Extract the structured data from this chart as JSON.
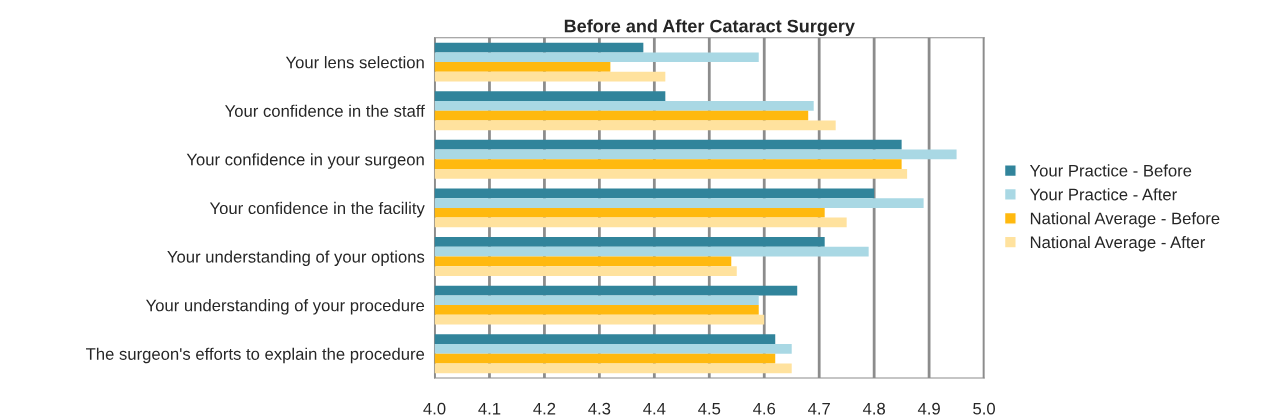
{
  "chart_data": {
    "type": "bar",
    "orientation": "horizontal",
    "title": "Before and After Cataract Surgery",
    "categories": [
      "Your lens selection",
      "Your confidence in the staff",
      "Your confidence in your surgeon",
      "Your confidence in the facility",
      "Your understanding of your options",
      "Your understanding of your procedure",
      "The surgeon's efforts to explain the procedure"
    ],
    "series": [
      {
        "name": "Your Practice - Before",
        "color": "#31849b",
        "values": [
          4.38,
          4.42,
          4.85,
          4.8,
          4.71,
          4.66,
          4.62
        ]
      },
      {
        "name": "Your Practice - After",
        "color": "#a9d8e4",
        "values": [
          4.59,
          4.69,
          4.95,
          4.89,
          4.79,
          4.59,
          4.65
        ]
      },
      {
        "name": "National Average - Before",
        "color": "#ffb90f",
        "values": [
          4.32,
          4.68,
          4.85,
          4.71,
          4.54,
          4.59,
          4.62
        ]
      },
      {
        "name": "National Average - After",
        "color": "#ffe29e",
        "values": [
          4.42,
          4.73,
          4.86,
          4.75,
          4.55,
          4.6,
          4.65
        ]
      }
    ],
    "xlim": [
      4.0,
      5.0
    ],
    "xticks": [
      {
        "value": 4.0,
        "label": "4.0"
      },
      {
        "value": 4.1,
        "label": "4.1"
      },
      {
        "value": 4.2,
        "label": "4.2"
      },
      {
        "value": 4.3,
        "label": "4.3"
      },
      {
        "value": 4.4,
        "label": "4.4"
      },
      {
        "value": 4.5,
        "label": "4.5"
      },
      {
        "value": 4.6,
        "label": "4.6"
      },
      {
        "value": 4.7,
        "label": "4.7"
      },
      {
        "value": 4.8,
        "label": "4.8"
      },
      {
        "value": 4.9,
        "label": "4.9"
      },
      {
        "value": 5.0,
        "label": "5.0"
      }
    ],
    "grid": "x",
    "legend": "right"
  }
}
